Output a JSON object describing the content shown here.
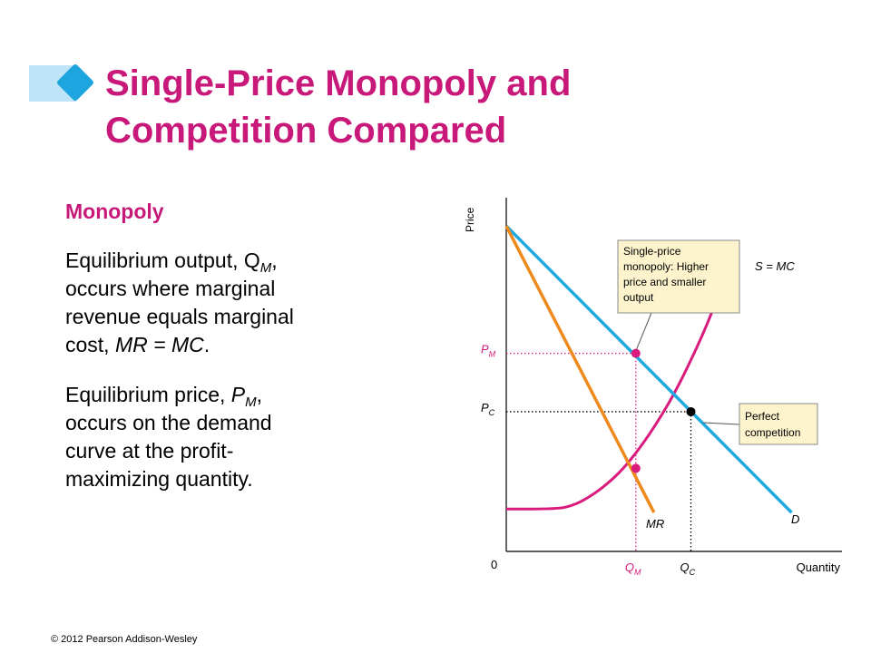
{
  "title": {
    "line1": "Single-Price Monopoly and",
    "line2": "Competition Compared"
  },
  "left": {
    "heading": "Monopoly",
    "para1": {
      "line1_a": "Equilibrium output, Q",
      "line1_sub": "M",
      "line1_b": ",",
      "line2": "occurs where marginal",
      "line3": "revenue equals marginal",
      "line4_a": "cost, ",
      "line4_em": "MR = MC",
      "line4_b": "."
    },
    "para2": {
      "line1_a": "Equilibrium price, ",
      "line1_p": "P",
      "line1_sub": "M",
      "line1_b": ",",
      "line2": "occurs on the demand",
      "line3": "curve at the profit-",
      "line4": "maximizing quantity."
    }
  },
  "copyright": "© 2012 Pearson Addison-Wesley",
  "chart_data": {
    "type": "line",
    "xlabel": "Quantity",
    "ylabel": "Price",
    "origin_label": "0",
    "xlim": [
      0,
      10
    ],
    "ylim": [
      0,
      10
    ],
    "series": [
      {
        "name": "D",
        "color": "#1fa9e1",
        "points": [
          [
            0,
            9.2
          ],
          [
            8.5,
            1.1
          ]
        ]
      },
      {
        "name": "MR",
        "color": "#ee8a1d",
        "points": [
          [
            0,
            9.2
          ],
          [
            4.4,
            1.1
          ]
        ]
      },
      {
        "name": "S = MC",
        "color": "#d81b7d",
        "points": [
          [
            0,
            1.2
          ],
          [
            1.5,
            1.2
          ],
          [
            2.0,
            1.3
          ],
          [
            2.5,
            1.55
          ],
          [
            3.0,
            1.9
          ],
          [
            3.5,
            2.35
          ],
          [
            4.0,
            2.95
          ],
          [
            4.5,
            3.65
          ],
          [
            5.0,
            4.45
          ],
          [
            5.5,
            5.4
          ],
          [
            6.0,
            6.45
          ],
          [
            6.3,
            7.2
          ],
          [
            6.6,
            8.2
          ]
        ]
      }
    ],
    "annotations": {
      "monopoly_box_lines": [
        "Single-price",
        "monopoly: Higher",
        "price and smaller",
        "output"
      ],
      "competition_box_lines": [
        "Perfect",
        "competition"
      ]
    },
    "ticks": {
      "QM": {
        "x": 3.86,
        "label": "Q",
        "sub": "M",
        "color": "#d81b7d"
      },
      "QC": {
        "x": 5.5,
        "label": "Q",
        "sub": "C",
        "color": "#000000"
      },
      "PM": {
        "y": 5.6,
        "label": "P",
        "sub": "M",
        "color": "#d81b7d"
      },
      "PC": {
        "y": 3.95,
        "label": "P",
        "sub": "C",
        "color": "#000000"
      }
    },
    "points": [
      {
        "name": "monopoly-price-point",
        "x": 3.86,
        "y": 5.6,
        "color": "#d81b7d"
      },
      {
        "name": "monopoly-mr-mc-point",
        "x": 3.86,
        "y": 2.35,
        "color": "#d81b7d"
      },
      {
        "name": "competitive-equilibrium-point",
        "x": 5.5,
        "y": 3.95,
        "color": "#000000"
      }
    ],
    "grid": false
  }
}
